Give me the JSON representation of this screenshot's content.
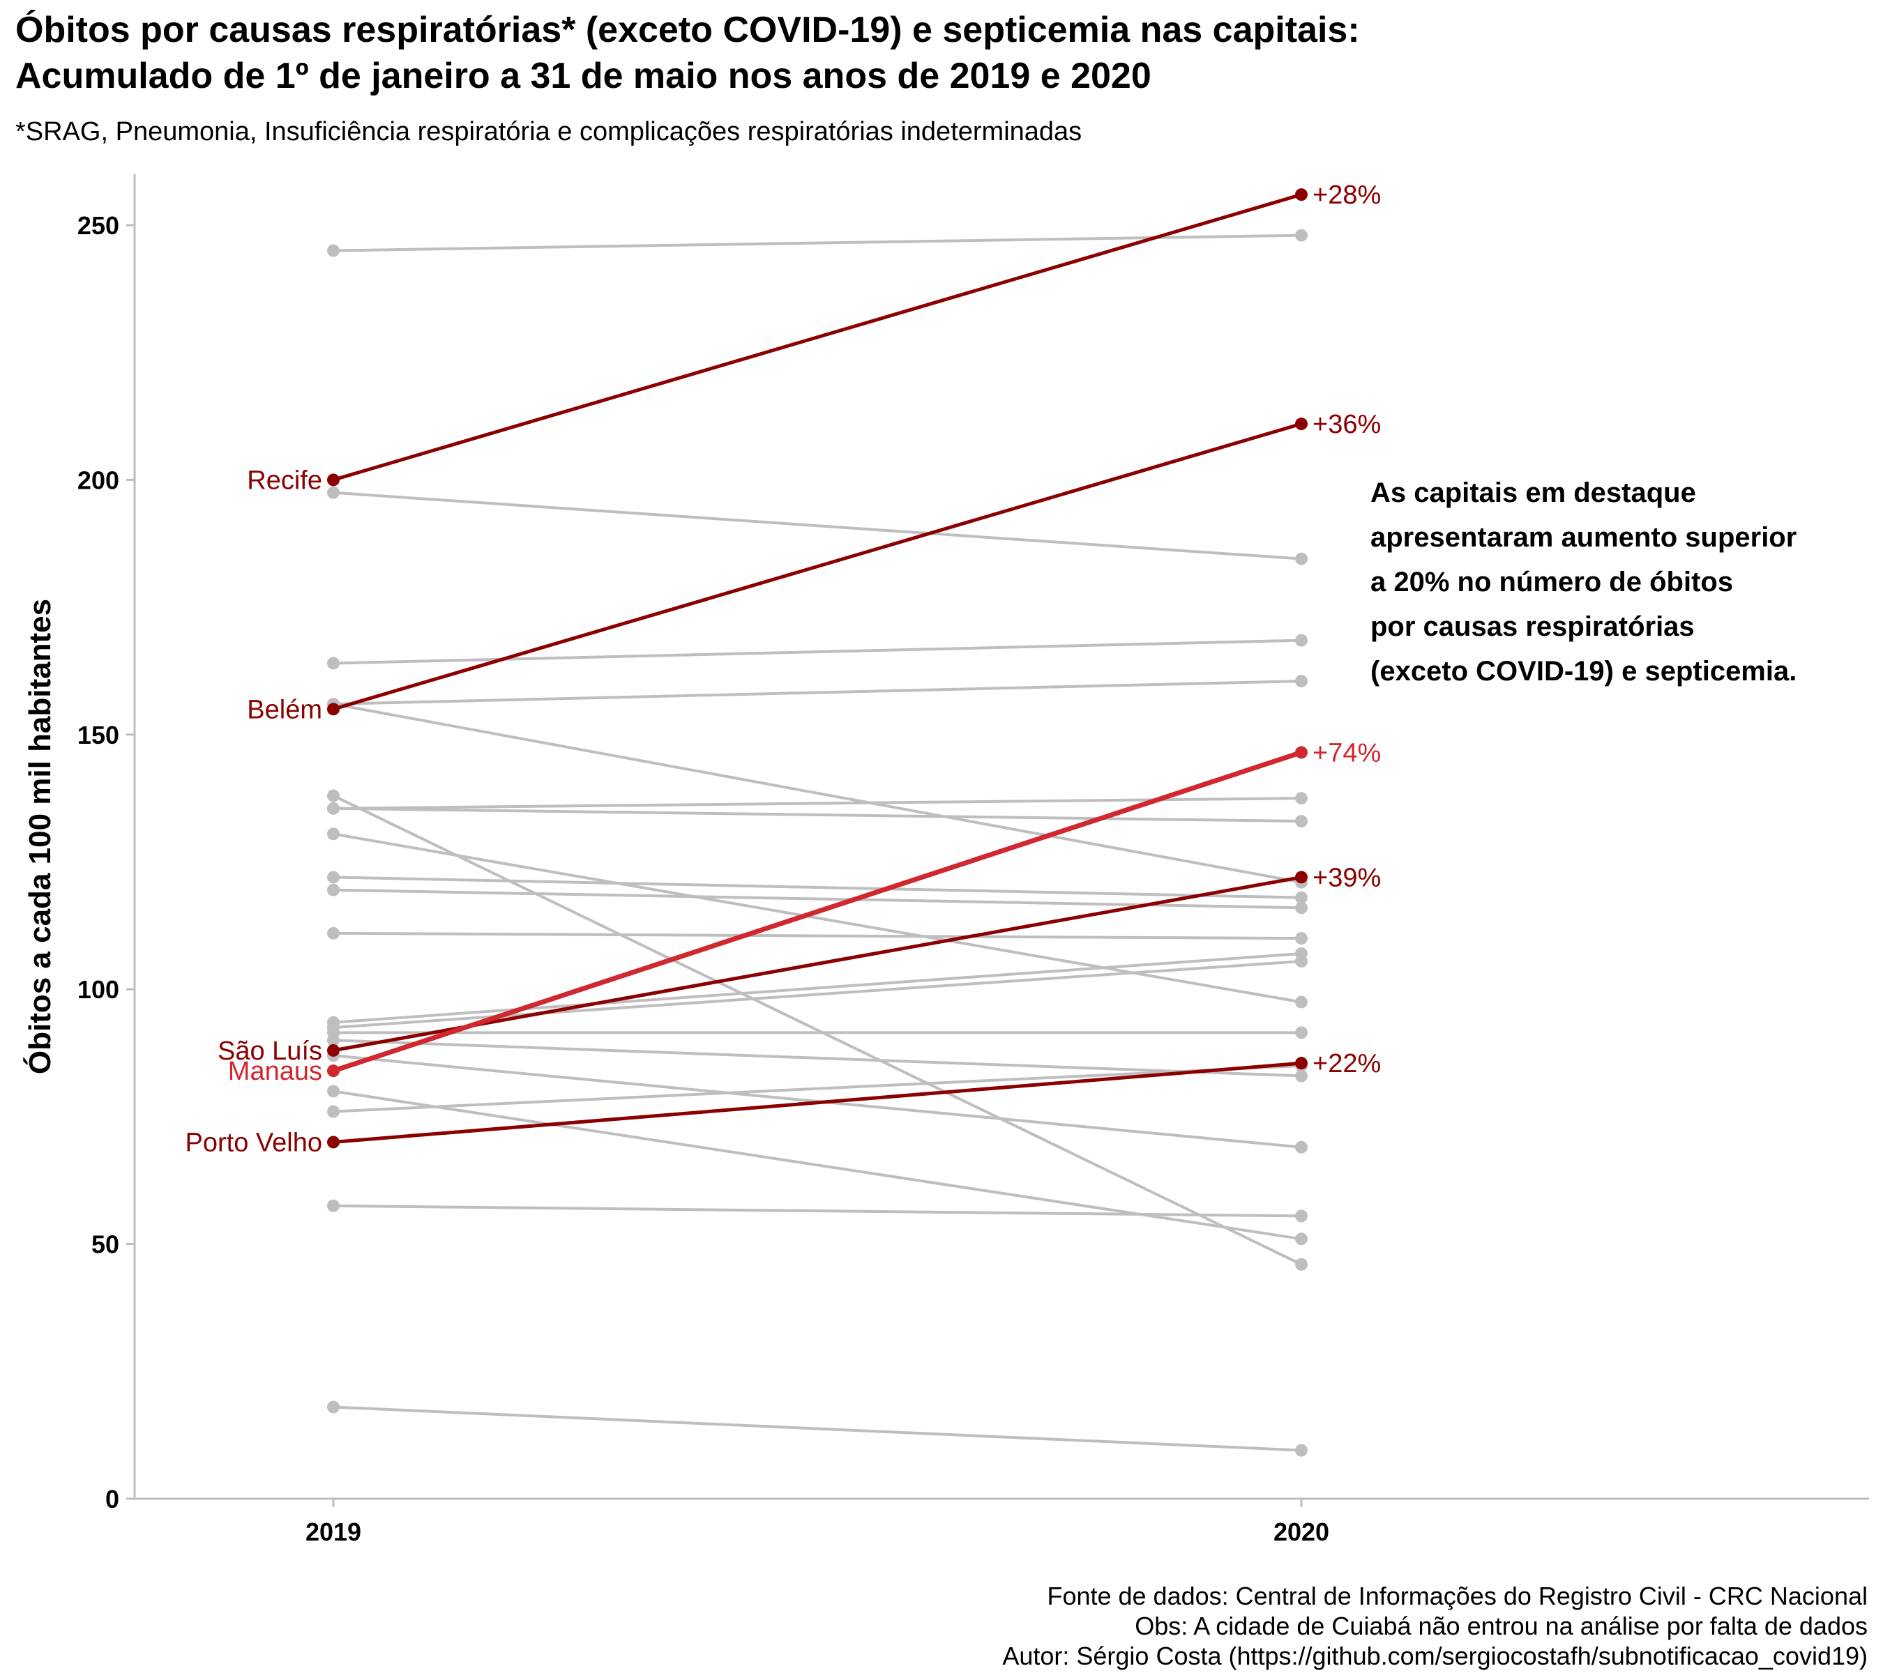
{
  "title_line1": "Óbitos por causas respiratórias* (exceto COVID-19) e septicemia nas capitais:",
  "title_line2": "Acumulado de 1º de janeiro a 31 de maio nos anos de 2019 e 2020",
  "subtitle": "*SRAG, Pneumonia, Insuficiência respiratória e complicações respiratórias indeterminadas",
  "caption": [
    "Fonte de dados: Central de Informações do Registro Civil - CRC Nacional",
    "Obs: A cidade de Cuiabá não entrou na análise por falta de dados",
    "Autor: Sérgio Costa (https://github.com/sergiocostafh/subnotificacao_covid19)"
  ],
  "colors": {
    "grey": "#bebebe",
    "dark_red": "#8b0000",
    "red": "#d0282e"
  },
  "chart_data": {
    "type": "line",
    "x": [
      "2019",
      "2020"
    ],
    "ylabel": "Óbitos a cada 100 mil habitantes",
    "ylim": [
      0,
      260
    ],
    "yticks": [
      0,
      50,
      100,
      150,
      200,
      250
    ],
    "grid": false,
    "annotation": [
      "As capitais em destaque",
      "apresentaram aumento superior",
      "a 20% no número de óbitos",
      "por causas respiratórias",
      "(exceto COVID-19) e septicemia."
    ],
    "series": [
      {
        "values": [
          245,
          248
        ],
        "highlight": false
      },
      {
        "values": [
          197.5,
          184.5
        ],
        "highlight": false
      },
      {
        "values": [
          164,
          168.5
        ],
        "highlight": false
      },
      {
        "values": [
          156,
          160.5
        ],
        "highlight": false
      },
      {
        "values": [
          156,
          121
        ],
        "highlight": false
      },
      {
        "values": [
          138,
          46
        ],
        "highlight": false
      },
      {
        "values": [
          135.5,
          137.5
        ],
        "highlight": false
      },
      {
        "values": [
          135.5,
          133
        ],
        "highlight": false
      },
      {
        "values": [
          130.5,
          97.5
        ],
        "highlight": false
      },
      {
        "values": [
          122,
          118
        ],
        "highlight": false
      },
      {
        "values": [
          119.5,
          116
        ],
        "highlight": false
      },
      {
        "values": [
          111,
          110
        ],
        "highlight": false
      },
      {
        "values": [
          93.5,
          107
        ],
        "highlight": false
      },
      {
        "values": [
          92.5,
          105.5
        ],
        "highlight": false
      },
      {
        "values": [
          91.5,
          91.5
        ],
        "highlight": false
      },
      {
        "values": [
          90,
          83
        ],
        "highlight": false
      },
      {
        "values": [
          87,
          69
        ],
        "highlight": false
      },
      {
        "values": [
          80,
          51
        ],
        "highlight": false
      },
      {
        "values": [
          76,
          85
        ],
        "highlight": false
      },
      {
        "values": [
          57.5,
          55.5
        ],
        "highlight": false
      },
      {
        "values": [
          18,
          9.5
        ],
        "highlight": false
      },
      {
        "name": "Recife",
        "values": [
          200,
          256
        ],
        "highlight": true,
        "color": "#8b0000",
        "change": "+28%"
      },
      {
        "name": "Belém",
        "values": [
          155,
          211
        ],
        "highlight": true,
        "color": "#8b0000",
        "change": "+36%"
      },
      {
        "name": "São Luís",
        "values": [
          88,
          122
        ],
        "highlight": true,
        "color": "#8b0000",
        "change": "+39%"
      },
      {
        "name": "Manaus",
        "values": [
          84,
          146.5
        ],
        "highlight": true,
        "color": "#d0282e",
        "change": "+74%"
      },
      {
        "name": "Porto Velho",
        "values": [
          70,
          85.5
        ],
        "highlight": true,
        "color": "#8b0000",
        "change": "+22%"
      }
    ]
  }
}
